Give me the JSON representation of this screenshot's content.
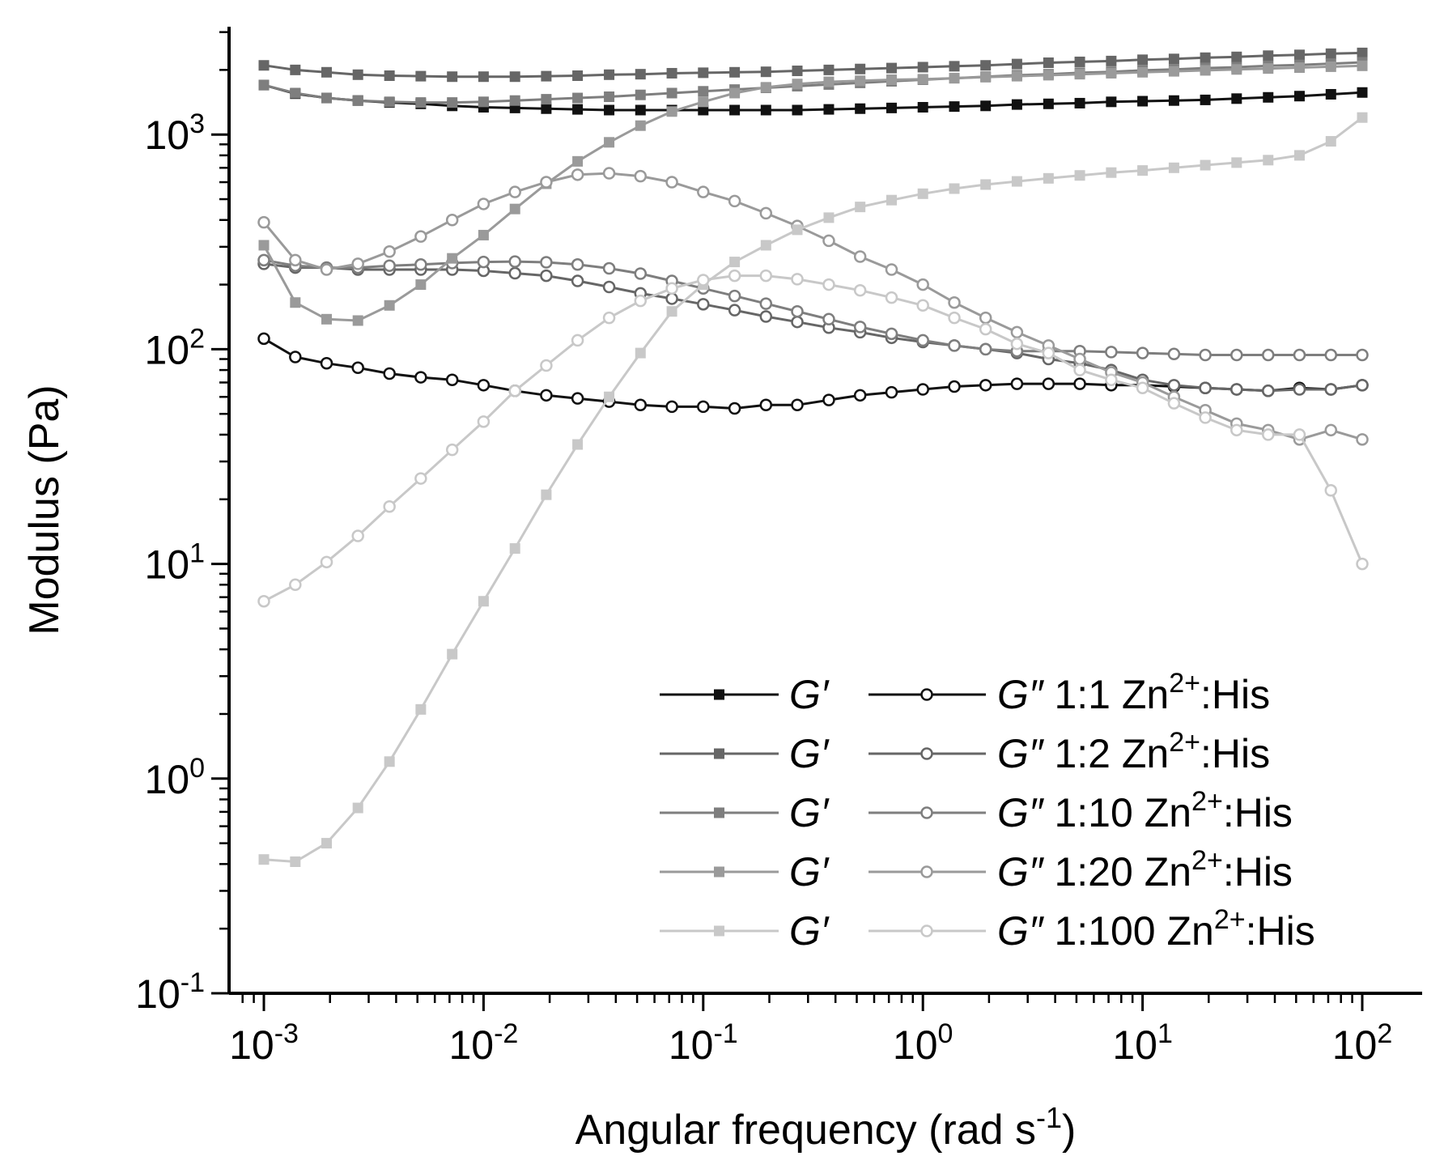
{
  "chart_data": {
    "type": "line",
    "xscale": "log",
    "yscale": "log",
    "xlabel": "Angular frequency (rad s",
    "xlabel_sup": "-1",
    "xlabel_end": ")",
    "ylabel": "Modulus (Pa)",
    "xlim": [
      0.00068,
      220
    ],
    "ylim": [
      0.1,
      3000
    ],
    "x_ticks": [
      {
        "mant": "10",
        "exp": "-3",
        "value": 0.001
      },
      {
        "mant": "10",
        "exp": "-2",
        "value": 0.01
      },
      {
        "mant": "10",
        "exp": "-1",
        "value": 0.1
      },
      {
        "mant": "10",
        "exp": "0",
        "value": 1
      },
      {
        "mant": "10",
        "exp": "1",
        "value": 10
      },
      {
        "mant": "10",
        "exp": "2",
        "value": 100
      }
    ],
    "y_ticks": [
      {
        "mant": "10",
        "exp": "-1",
        "value": 0.1
      },
      {
        "mant": "10",
        "exp": "0",
        "value": 1
      },
      {
        "mant": "10",
        "exp": "1",
        "value": 10
      },
      {
        "mant": "10",
        "exp": "2",
        "value": 100
      },
      {
        "mant": "10",
        "exp": "3",
        "value": 1000
      }
    ],
    "x": [
      0.001,
      0.00139,
      0.00193,
      0.00268,
      0.00373,
      0.00518,
      0.0072,
      0.01,
      0.0139,
      0.0193,
      0.0268,
      0.0373,
      0.0518,
      0.072,
      0.1,
      0.139,
      0.193,
      0.268,
      0.373,
      0.518,
      0.72,
      1,
      1.39,
      1.93,
      2.68,
      3.73,
      5.18,
      7.2,
      10,
      13.9,
      19.3,
      26.8,
      37.3,
      51.8,
      72,
      100
    ],
    "series": [
      {
        "name": "G' 1:1 Zn2+:His",
        "kind": "G'",
        "marker": "square",
        "color": "#111111",
        "values": [
          1700,
          1550,
          1480,
          1440,
          1410,
          1390,
          1360,
          1340,
          1330,
          1320,
          1310,
          1300,
          1300,
          1300,
          1300,
          1300,
          1300,
          1300,
          1310,
          1320,
          1330,
          1340,
          1350,
          1360,
          1380,
          1390,
          1400,
          1420,
          1430,
          1440,
          1450,
          1470,
          1490,
          1510,
          1540,
          1570
        ]
      },
      {
        "name": "G'' 1:1 Zn2+:His",
        "kind": "G''",
        "marker": "circle",
        "color": "#111111",
        "values": [
          112,
          92,
          86,
          82,
          77,
          74,
          72,
          68,
          64,
          61,
          59,
          57,
          55,
          54,
          54,
          53,
          55,
          55,
          58,
          61,
          63,
          65,
          67,
          68,
          69,
          69,
          69,
          68,
          68,
          67,
          66,
          65,
          64,
          66,
          65,
          68
        ]
      },
      {
        "name": "G' 1:2 Zn2+:His",
        "kind": "G'",
        "marker": "square",
        "color": "#666666",
        "values": [
          2100,
          2000,
          1950,
          1900,
          1880,
          1870,
          1860,
          1860,
          1860,
          1870,
          1880,
          1900,
          1910,
          1930,
          1940,
          1950,
          1960,
          1980,
          2000,
          2020,
          2040,
          2060,
          2080,
          2100,
          2130,
          2160,
          2180,
          2200,
          2230,
          2250,
          2280,
          2300,
          2330,
          2350,
          2380,
          2400
        ]
      },
      {
        "name": "G'' 1:2 Zn2+:His",
        "kind": "G''",
        "marker": "circle",
        "color": "#666666",
        "values": [
          250,
          240,
          240,
          235,
          235,
          235,
          235,
          232,
          226,
          220,
          208,
          195,
          182,
          172,
          162,
          152,
          142,
          134,
          126,
          120,
          113,
          108,
          104,
          100,
          96,
          90,
          86,
          80,
          72,
          68,
          66,
          65,
          64,
          65,
          65,
          68
        ]
      },
      {
        "name": "G' 1:10 Zn2+:His",
        "kind": "G'",
        "marker": "square",
        "color": "#7e7e7e",
        "values": [
          1700,
          1560,
          1480,
          1440,
          1420,
          1410,
          1410,
          1420,
          1440,
          1460,
          1480,
          1500,
          1530,
          1560,
          1590,
          1620,
          1650,
          1680,
          1710,
          1740,
          1770,
          1800,
          1830,
          1860,
          1890,
          1910,
          1940,
          1960,
          1990,
          2010,
          2040,
          2060,
          2090,
          2110,
          2140,
          2170
        ]
      },
      {
        "name": "G'' 1:10 Zn2+:His",
        "kind": "G''",
        "marker": "circle",
        "color": "#7e7e7e",
        "values": [
          260,
          245,
          240,
          240,
          245,
          248,
          252,
          255,
          256,
          254,
          248,
          238,
          225,
          208,
          192,
          177,
          163,
          150,
          138,
          127,
          118,
          110,
          104,
          100,
          98,
          98,
          98,
          97,
          96,
          95,
          94,
          94,
          94,
          94,
          94,
          94
        ]
      },
      {
        "name": "G' 1:20 Zn2+:His",
        "kind": "G'",
        "marker": "square",
        "color": "#9a9a9a",
        "values": [
          305,
          165,
          138,
          136,
          160,
          200,
          265,
          340,
          450,
          590,
          750,
          920,
          1100,
          1280,
          1420,
          1560,
          1660,
          1720,
          1760,
          1780,
          1800,
          1810,
          1830,
          1850,
          1870,
          1890,
          1910,
          1930,
          1950,
          1970,
          1990,
          2010,
          2030,
          2050,
          2070,
          2090
        ]
      },
      {
        "name": "G'' 1:20 Zn2+:His",
        "kind": "G''",
        "marker": "circle",
        "color": "#9a9a9a",
        "values": [
          390,
          260,
          235,
          250,
          285,
          335,
          400,
          475,
          540,
          600,
          650,
          660,
          640,
          600,
          540,
          490,
          430,
          375,
          320,
          270,
          235,
          200,
          165,
          140,
          120,
          104,
          90,
          78,
          70,
          60,
          52,
          45,
          42,
          38,
          42,
          38
        ]
      },
      {
        "name": "G' 1:100 Zn2+:His",
        "kind": "G'",
        "marker": "square",
        "color": "#c8c8c8",
        "values": [
          0.42,
          0.41,
          0.5,
          0.73,
          1.2,
          2.1,
          3.8,
          6.7,
          11.8,
          21,
          36,
          60,
          96,
          150,
          200,
          255,
          305,
          360,
          410,
          460,
          495,
          530,
          560,
          585,
          605,
          625,
          645,
          665,
          680,
          700,
          720,
          740,
          760,
          800,
          930,
          1200
        ]
      },
      {
        "name": "G'' 1:100 Zn2+:His",
        "kind": "G''",
        "marker": "circle",
        "color": "#c8c8c8",
        "values": [
          6.7,
          8,
          10.2,
          13.5,
          18.5,
          25,
          34,
          46,
          64,
          84,
          110,
          140,
          168,
          192,
          210,
          220,
          220,
          212,
          200,
          188,
          174,
          160,
          140,
          124,
          106,
          96,
          80,
          72,
          66,
          56,
          48,
          42,
          40,
          40,
          22,
          10
        ]
      }
    ],
    "legend": {
      "placement": "bottom-right",
      "rows": [
        {
          "g_prime": "G′",
          "g_double": "G″",
          "ratio": "1:1",
          "ion": "Zn",
          "charge": "2+",
          "ligand": ":His",
          "color": "#111111"
        },
        {
          "g_prime": "G′",
          "g_double": "G″",
          "ratio": "1:2",
          "ion": "Zn",
          "charge": "2+",
          "ligand": ":His",
          "color": "#666666"
        },
        {
          "g_prime": "G′",
          "g_double": "G″",
          "ratio": "1:10",
          "ion": "Zn",
          "charge": "2+",
          "ligand": ":His",
          "color": "#7e7e7e"
        },
        {
          "g_prime": "G′",
          "g_double": "G″",
          "ratio": "1:20",
          "ion": "Zn",
          "charge": "2+",
          "ligand": ":His",
          "color": "#9a9a9a"
        },
        {
          "g_prime": "G′",
          "g_double": "G″",
          "ratio": "1:100",
          "ion": "Zn",
          "charge": "2+",
          "ligand": ":His",
          "color": "#c8c8c8"
        }
      ]
    }
  }
}
